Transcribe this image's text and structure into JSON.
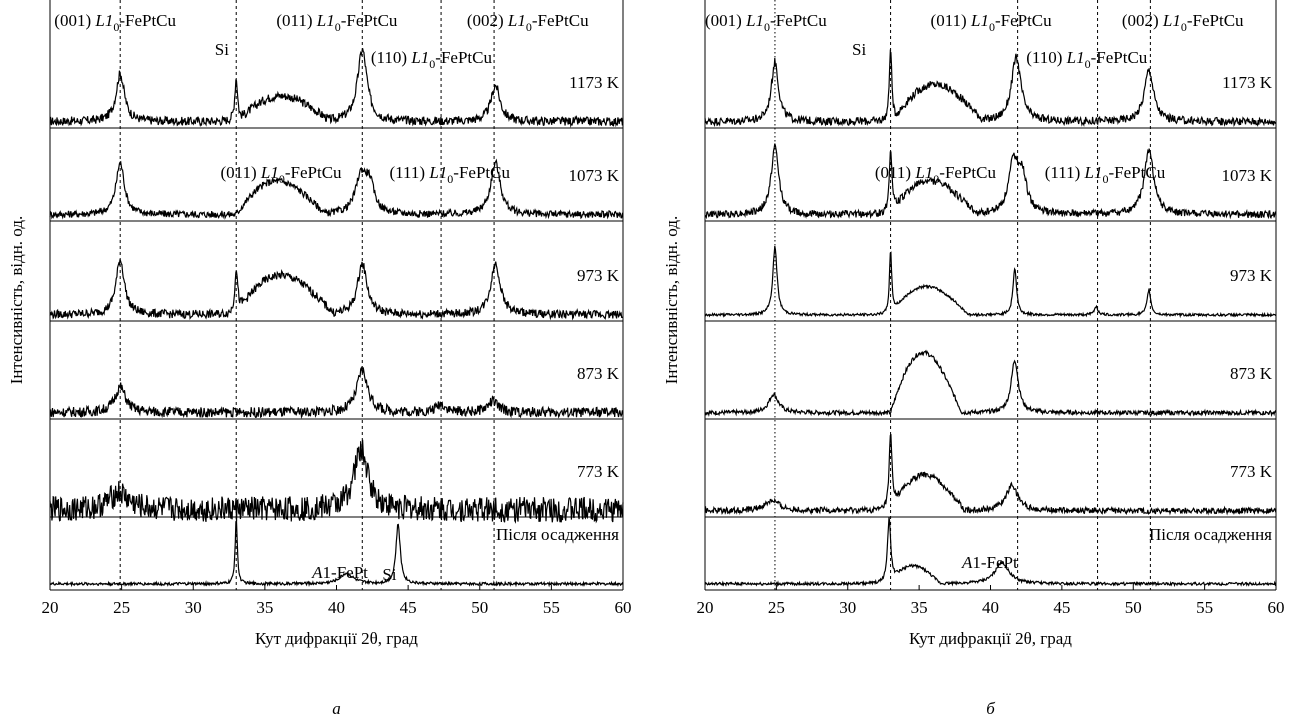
{
  "chart_data": [
    {
      "panel_id": "a",
      "type": "line",
      "panel_label": "а",
      "xlabel": "Кут дифракції 2θ, град",
      "ylabel": "Інтенсивність, відн. од.",
      "xlim": [
        20,
        60
      ],
      "xticks": [
        "20",
        "25",
        "30",
        "35",
        "40",
        "45",
        "50",
        "55",
        "60"
      ],
      "grid": false,
      "series": [
        {
          "name": "1173 K",
          "peaks": [
            {
              "x": 24.9,
              "h": 0.6,
              "w": 0.35
            },
            {
              "x": 33.0,
              "h": 0.55,
              "w": 0.12
            },
            {
              "x": 41.8,
              "h": 0.9,
              "w": 0.4
            },
            {
              "x": 51.1,
              "h": 0.45,
              "w": 0.38
            }
          ],
          "humps": [
            {
              "x1": 33.2,
              "x2": 39.5,
              "h": 0.38
            }
          ],
          "noise": 0.11
        },
        {
          "name": "1073 K",
          "peaks": [
            {
              "x": 24.9,
              "h": 0.65,
              "w": 0.35
            },
            {
              "x": 41.7,
              "h": 0.45,
              "w": 0.45
            },
            {
              "x": 42.3,
              "h": 0.35,
              "w": 0.4
            },
            {
              "x": 51.1,
              "h": 0.65,
              "w": 0.4
            }
          ],
          "humps": [
            {
              "x1": 33.0,
              "x2": 39.2,
              "h": 0.5
            }
          ],
          "noise": 0.09
        },
        {
          "name": "973 K",
          "peaks": [
            {
              "x": 24.9,
              "h": 0.65,
              "w": 0.35
            },
            {
              "x": 33.0,
              "h": 0.55,
              "w": 0.12
            },
            {
              "x": 41.8,
              "h": 0.6,
              "w": 0.4
            },
            {
              "x": 51.1,
              "h": 0.6,
              "w": 0.4
            }
          ],
          "humps": [
            {
              "x1": 33.0,
              "x2": 39.8,
              "h": 0.55
            }
          ],
          "noise": 0.1
        },
        {
          "name": "873 K",
          "peaks": [
            {
              "x": 24.9,
              "h": 0.3,
              "w": 0.45
            },
            {
              "x": 41.8,
              "h": 0.5,
              "w": 0.45
            },
            {
              "x": 47.3,
              "h": 0.1,
              "w": 0.4
            },
            {
              "x": 50.9,
              "h": 0.13,
              "w": 0.45
            }
          ],
          "humps": [],
          "noise": 0.12
        },
        {
          "name": "773 K",
          "peaks": [
            {
              "x": 41.7,
              "h": 0.7,
              "w": 0.6
            },
            {
              "x": 24.8,
              "h": 0.2,
              "w": 0.8
            }
          ],
          "humps": [],
          "noise": 0.3
        },
        {
          "name": "Після осадження",
          "peaks": [
            {
              "x": 33.0,
              "h": 0.95,
              "w": 0.09
            },
            {
              "x": 40.7,
              "h": 0.15,
              "w": 0.55
            },
            {
              "x": 44.3,
              "h": 0.85,
              "w": 0.18
            }
          ],
          "humps": [],
          "noise": 0.04
        }
      ],
      "dashed_lines_x": [
        24.9,
        33.0,
        41.8,
        47.3,
        51.0
      ],
      "annotations": [
        {
          "text": "(001)",
          "row": 0,
          "x": 20.3,
          "pos": "top-label",
          "italic_part": "L1",
          "suffix": "-FePtCu",
          "hkl_x": 20.3
        },
        {
          "text": "(011)",
          "row": 0,
          "x": 35.8,
          "pos": "top-label",
          "italic_part": "L1",
          "suffix": "-FePtCu"
        },
        {
          "text": "(002)",
          "row": 0,
          "x": 49.1,
          "pos": "top-label",
          "italic_part": "L1",
          "suffix": "-FePtCu"
        },
        {
          "text": "Si",
          "row": 0,
          "x": 31.5,
          "pos": "small"
        },
        {
          "text": "(110)",
          "row": 0,
          "x": 42.4,
          "pos": "mid-label",
          "italic_part": "L1",
          "suffix": "-FePtCu"
        },
        {
          "text": "(011)",
          "row": 1,
          "x": 31.9,
          "pos": "top-label",
          "italic_part": "L1",
          "suffix": "-FePtCu"
        },
        {
          "text": "(111)",
          "row": 1,
          "x": 43.7,
          "pos": "top-label",
          "italic_part": "L1",
          "suffix": "-FePtCu"
        },
        {
          "text": "A1-FePt",
          "row": 5,
          "x": 38.3,
          "pos": "small-a1"
        },
        {
          "text": "Si",
          "row": 5,
          "x": 43.2,
          "pos": "small"
        }
      ],
      "temperature_labels": [
        "1173 K",
        "1073 K",
        "973 K",
        "873 K",
        "773 K",
        "Після осадження"
      ]
    },
    {
      "panel_id": "b",
      "type": "line",
      "panel_label": "б",
      "xlabel": "Кут дифракції 2θ, град",
      "ylabel": "Інтенсивність, відн. од.",
      "xlim": [
        20,
        60
      ],
      "xticks": [
        "20",
        "25",
        "30",
        "35",
        "40",
        "45",
        "50",
        "55",
        "60"
      ],
      "grid": false,
      "series": [
        {
          "name": "1173 K",
          "peaks": [
            {
              "x": 24.9,
              "h": 0.75,
              "w": 0.3
            },
            {
              "x": 33.0,
              "h": 0.95,
              "w": 0.1
            },
            {
              "x": 41.8,
              "h": 0.8,
              "w": 0.4
            },
            {
              "x": 51.1,
              "h": 0.65,
              "w": 0.38
            }
          ],
          "humps": [
            {
              "x1": 33.2,
              "x2": 39.5,
              "h": 0.55
            }
          ],
          "noise": 0.1
        },
        {
          "name": "1073 K",
          "peaks": [
            {
              "x": 24.9,
              "h": 0.85,
              "w": 0.32
            },
            {
              "x": 33.0,
              "h": 0.8,
              "w": 0.12
            },
            {
              "x": 41.6,
              "h": 0.6,
              "w": 0.4
            },
            {
              "x": 42.2,
              "h": 0.45,
              "w": 0.4
            },
            {
              "x": 51.1,
              "h": 0.8,
              "w": 0.4
            }
          ],
          "humps": [
            {
              "x1": 33.0,
              "x2": 39.0,
              "h": 0.5
            }
          ],
          "noise": 0.09
        },
        {
          "name": "973 K",
          "peaks": [
            {
              "x": 24.9,
              "h": 0.8,
              "w": 0.18
            },
            {
              "x": 33.0,
              "h": 0.75,
              "w": 0.1
            },
            {
              "x": 41.7,
              "h": 0.55,
              "w": 0.15
            },
            {
              "x": 47.4,
              "h": 0.1,
              "w": 0.15
            },
            {
              "x": 51.1,
              "h": 0.3,
              "w": 0.15
            }
          ],
          "humps": [
            {
              "x1": 33.0,
              "x2": 38.5,
              "h": 0.4
            }
          ],
          "noise": 0.03
        },
        {
          "name": "873 K",
          "peaks": [
            {
              "x": 24.8,
              "h": 0.22,
              "w": 0.4
            },
            {
              "x": 41.7,
              "h": 0.62,
              "w": 0.3
            }
          ],
          "humps": [
            {
              "x1": 33.0,
              "x2": 38.0,
              "h": 0.85
            }
          ],
          "noise": 0.05
        },
        {
          "name": "773 K",
          "peaks": [
            {
              "x": 33.0,
              "h": 0.9,
              "w": 0.12
            },
            {
              "x": 41.5,
              "h": 0.3,
              "w": 0.5
            },
            {
              "x": 24.7,
              "h": 0.12,
              "w": 0.6
            }
          ],
          "humps": [
            {
              "x1": 33.0,
              "x2": 38.2,
              "h": 0.5
            }
          ],
          "noise": 0.07
        },
        {
          "name": "Після осадження",
          "peaks": [
            {
              "x": 32.9,
              "h": 0.95,
              "w": 0.14
            },
            {
              "x": 40.8,
              "h": 0.3,
              "w": 0.6
            }
          ],
          "humps": [
            {
              "x1": 33.0,
              "x2": 36.5,
              "h": 0.3
            }
          ],
          "noise": 0.04
        }
      ],
      "dashed_lines_x": [
        24.9,
        33.0,
        41.9,
        47.5,
        51.2
      ],
      "annotations": [
        {
          "text": "(001)",
          "row": 0,
          "x": 20.0,
          "pos": "top-label",
          "italic_part": "L1",
          "suffix": "-FePtCu"
        },
        {
          "text": "(011)",
          "row": 0,
          "x": 35.8,
          "pos": "top-label",
          "italic_part": "L1",
          "suffix": "-FePtCu"
        },
        {
          "text": "(002)",
          "row": 0,
          "x": 49.2,
          "pos": "top-label",
          "italic_part": "L1",
          "suffix": "-FePtCu"
        },
        {
          "text": "Si",
          "row": 0,
          "x": 30.3,
          "pos": "small"
        },
        {
          "text": "(110)",
          "row": 0,
          "x": 42.5,
          "pos": "mid-label",
          "italic_part": "L1",
          "suffix": "-FePtCu"
        },
        {
          "text": "(011)",
          "row": 1,
          "x": 31.9,
          "pos": "top-label",
          "italic_part": "L1",
          "suffix": "-FePtCu"
        },
        {
          "text": "(111)",
          "row": 1,
          "x": 43.8,
          "pos": "top-label",
          "italic_part": "L1",
          "suffix": "-FePtCu"
        },
        {
          "text": "A1-FePt",
          "row": 5,
          "x": 38.0,
          "pos": "small-a1"
        }
      ],
      "temperature_labels": [
        "1173 K",
        "1073 K",
        "973 K",
        "873 K",
        "773 K",
        "Після осадження"
      ]
    }
  ]
}
